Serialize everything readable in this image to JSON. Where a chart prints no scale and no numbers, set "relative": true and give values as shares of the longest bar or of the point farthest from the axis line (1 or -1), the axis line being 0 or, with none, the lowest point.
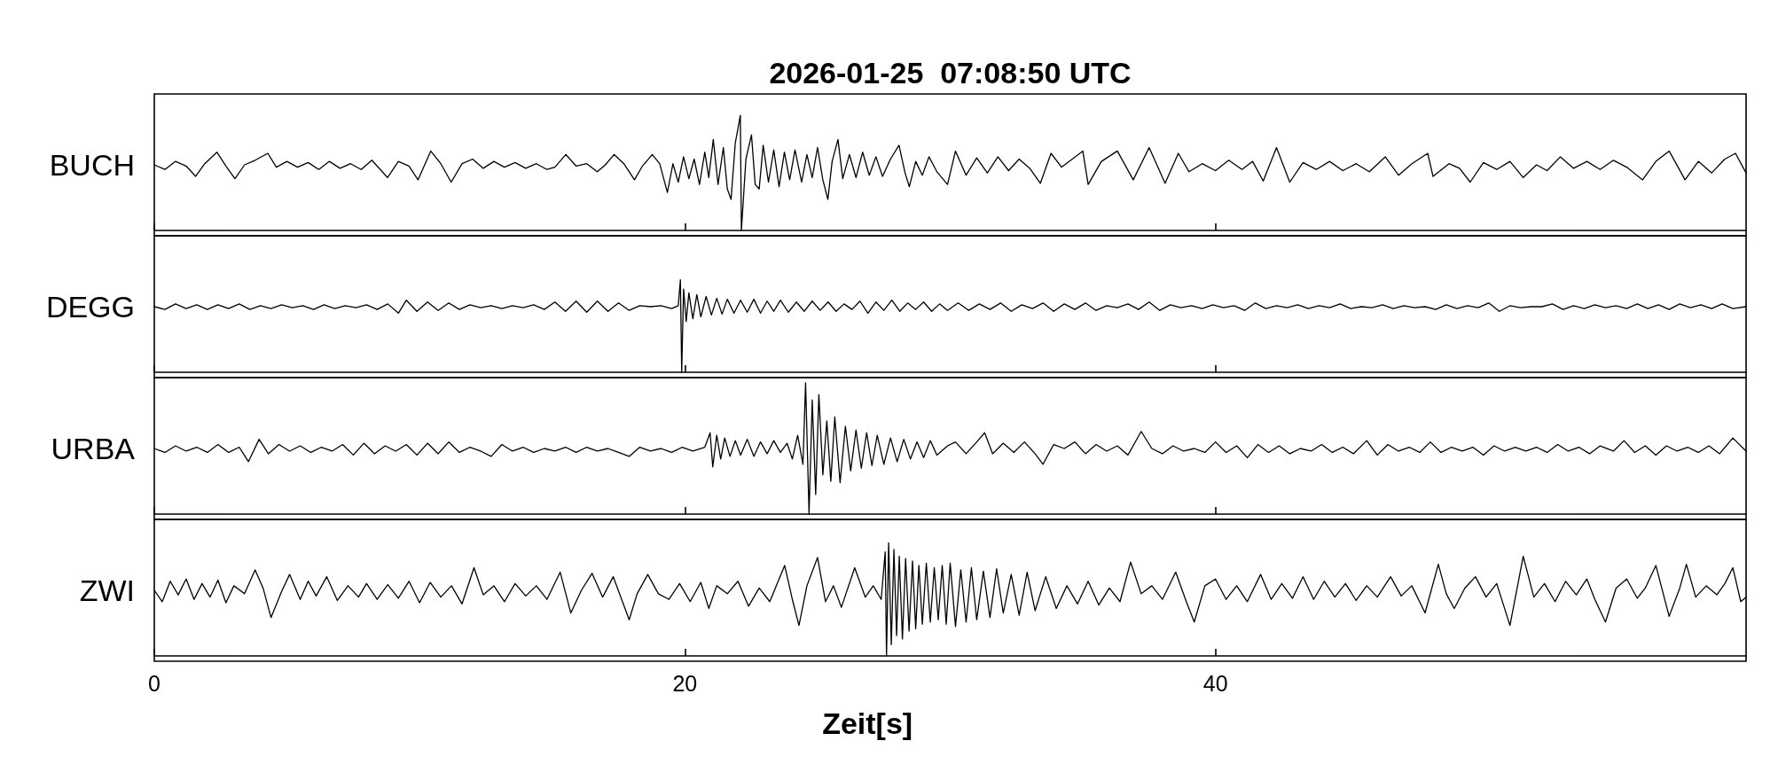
{
  "chart_data": [
    {
      "type": "line",
      "title": "2026-01-25  07:08:50 UTC",
      "ylabel": "BUCH",
      "relative": true,
      "color": "#000000",
      "xlim": [
        0,
        60
      ],
      "xticks": [
        0,
        20,
        40
      ],
      "tick_labels": false,
      "x": [
        0,
        0.4,
        0.8,
        1.2,
        1.56,
        1.9,
        2.36,
        2.7,
        3.04,
        3.4,
        3.8,
        4.28,
        4.6,
        5.0,
        5.4,
        5.8,
        6.2,
        6.6,
        7.0,
        7.4,
        7.8,
        8.2,
        8.79,
        9.2,
        9.6,
        9.94,
        10.42,
        10.8,
        11.19,
        11.6,
        12.0,
        12.4,
        12.8,
        13.2,
        13.6,
        14.0,
        14.4,
        14.8,
        15.1,
        15.51,
        15.9,
        16.3,
        16.7,
        17.0,
        17.33,
        17.7,
        18.1,
        18.4,
        18.77,
        19.05,
        19.34,
        19.55,
        19.75,
        19.95,
        20.15,
        20.35,
        20.55,
        20.75,
        20.9,
        21.07,
        21.25,
        21.45,
        21.6,
        21.74,
        21.9,
        22.09,
        22.13,
        22.3,
        22.51,
        22.65,
        22.8,
        22.95,
        23.15,
        23.35,
        23.55,
        23.75,
        23.95,
        24.15,
        24.4,
        24.6,
        24.8,
        25.0,
        25.2,
        25.39,
        25.55,
        25.77,
        25.95,
        26.2,
        26.45,
        26.7,
        26.95,
        27.2,
        27.45,
        27.75,
        28.07,
        28.3,
        28.46,
        28.7,
        28.95,
        29.2,
        29.5,
        29.9,
        30.2,
        30.6,
        31.0,
        31.4,
        31.8,
        32.2,
        32.6,
        33.0,
        33.4,
        33.8,
        34.2,
        34.6,
        35.0,
        35.2,
        35.7,
        36.3,
        36.9,
        37.5,
        38.1,
        38.6,
        39.0,
        39.5,
        40.0,
        40.5,
        41.0,
        41.4,
        41.8,
        42.3,
        42.8,
        43.3,
        43.8,
        44.3,
        44.8,
        45.3,
        45.8,
        46.4,
        46.9,
        47.4,
        48.0,
        48.2,
        48.8,
        49.2,
        49.6,
        50.1,
        50.6,
        51.1,
        51.6,
        52.1,
        52.5,
        53.0,
        53.5,
        54.0,
        54.5,
        55.0,
        55.5,
        56.1,
        56.6,
        57.1,
        57.7,
        58.2,
        58.7,
        59.2,
        59.6,
        60.0
      ],
      "values": [
        0.57,
        0.53,
        0.6,
        0.56,
        0.47,
        0.58,
        0.68,
        0.56,
        0.45,
        0.57,
        0.61,
        0.67,
        0.55,
        0.6,
        0.55,
        0.59,
        0.53,
        0.6,
        0.54,
        0.58,
        0.53,
        0.61,
        0.46,
        0.6,
        0.56,
        0.44,
        0.69,
        0.58,
        0.42,
        0.58,
        0.62,
        0.54,
        0.6,
        0.55,
        0.59,
        0.54,
        0.58,
        0.53,
        0.55,
        0.66,
        0.56,
        0.58,
        0.51,
        0.57,
        0.66,
        0.58,
        0.44,
        0.56,
        0.66,
        0.58,
        0.33,
        0.58,
        0.42,
        0.64,
        0.45,
        0.62,
        0.4,
        0.68,
        0.46,
        0.79,
        0.4,
        0.72,
        0.36,
        0.27,
        0.76,
        1.0,
        0.0,
        0.62,
        0.83,
        0.4,
        0.36,
        0.74,
        0.42,
        0.7,
        0.38,
        0.68,
        0.44,
        0.7,
        0.42,
        0.66,
        0.46,
        0.72,
        0.44,
        0.27,
        0.6,
        0.79,
        0.45,
        0.66,
        0.46,
        0.68,
        0.48,
        0.64,
        0.47,
        0.62,
        0.74,
        0.5,
        0.38,
        0.6,
        0.48,
        0.64,
        0.51,
        0.4,
        0.69,
        0.48,
        0.63,
        0.5,
        0.64,
        0.52,
        0.62,
        0.54,
        0.41,
        0.67,
        0.55,
        0.62,
        0.69,
        0.4,
        0.6,
        0.69,
        0.44,
        0.72,
        0.41,
        0.67,
        0.51,
        0.58,
        0.52,
        0.61,
        0.53,
        0.6,
        0.43,
        0.72,
        0.42,
        0.59,
        0.53,
        0.6,
        0.52,
        0.58,
        0.51,
        0.64,
        0.48,
        0.58,
        0.67,
        0.47,
        0.58,
        0.54,
        0.42,
        0.59,
        0.53,
        0.6,
        0.46,
        0.57,
        0.52,
        0.64,
        0.54,
        0.6,
        0.53,
        0.61,
        0.55,
        0.44,
        0.6,
        0.69,
        0.44,
        0.6,
        0.5,
        0.62,
        0.67,
        0.5
      ]
    },
    {
      "type": "line",
      "ylabel": "DEGG",
      "relative": true,
      "color": "#000000",
      "xlim": [
        0,
        60
      ],
      "xticks": [
        0,
        20,
        40
      ],
      "tick_labels": false,
      "x": [
        0,
        0.4,
        0.8,
        1.2,
        1.6,
        2.0,
        2.4,
        2.8,
        3.2,
        3.6,
        4.0,
        4.4,
        4.8,
        5.2,
        5.6,
        6.0,
        6.4,
        6.8,
        7.2,
        7.6,
        8.0,
        8.4,
        8.8,
        9.2,
        9.5,
        9.9,
        10.3,
        10.7,
        11.1,
        11.5,
        11.9,
        12.3,
        12.7,
        13.1,
        13.5,
        13.9,
        14.3,
        14.7,
        15.1,
        15.5,
        15.9,
        16.3,
        16.7,
        17.1,
        17.5,
        17.9,
        18.3,
        18.7,
        19.1,
        19.5,
        19.75,
        19.83,
        19.88,
        19.95,
        20.05,
        20.15,
        20.3,
        20.45,
        20.6,
        20.8,
        21.0,
        21.2,
        21.4,
        21.6,
        21.85,
        22.1,
        22.35,
        22.6,
        22.85,
        23.1,
        23.35,
        23.6,
        23.9,
        24.2,
        24.5,
        24.8,
        25.1,
        25.4,
        25.7,
        26.0,
        26.3,
        26.6,
        26.9,
        27.2,
        27.5,
        27.8,
        28.1,
        28.4,
        28.7,
        29.0,
        29.3,
        29.6,
        29.9,
        30.3,
        30.7,
        31.1,
        31.5,
        31.9,
        32.3,
        32.7,
        33.1,
        33.5,
        33.9,
        34.3,
        34.7,
        35.1,
        35.5,
        35.9,
        36.3,
        36.7,
        37.1,
        37.5,
        37.9,
        38.3,
        38.7,
        39.1,
        39.5,
        39.9,
        40.3,
        40.7,
        41.1,
        41.5,
        41.9,
        42.3,
        42.7,
        43.1,
        43.5,
        43.9,
        44.3,
        44.7,
        45.1,
        45.5,
        45.9,
        46.3,
        46.7,
        47.1,
        47.5,
        47.9,
        48.3,
        48.7,
        49.1,
        49.5,
        49.9,
        50.3,
        50.7,
        51.1,
        51.5,
        51.9,
        52.3,
        52.7,
        53.1,
        53.5,
        53.9,
        54.3,
        54.7,
        55.1,
        55.5,
        55.9,
        56.3,
        56.7,
        57.1,
        57.5,
        57.9,
        58.3,
        58.7,
        59.1,
        59.5,
        60.0
      ],
      "values": [
        0.71,
        0.68,
        0.74,
        0.69,
        0.73,
        0.68,
        0.73,
        0.69,
        0.74,
        0.68,
        0.72,
        0.69,
        0.73,
        0.7,
        0.72,
        0.68,
        0.73,
        0.69,
        0.72,
        0.7,
        0.73,
        0.68,
        0.74,
        0.64,
        0.78,
        0.66,
        0.76,
        0.67,
        0.75,
        0.68,
        0.73,
        0.7,
        0.72,
        0.69,
        0.72,
        0.7,
        0.73,
        0.68,
        0.76,
        0.66,
        0.77,
        0.65,
        0.77,
        0.66,
        0.75,
        0.67,
        0.72,
        0.71,
        0.72,
        0.69,
        0.72,
        1.0,
        0.0,
        0.9,
        0.55,
        0.86,
        0.58,
        0.84,
        0.6,
        0.82,
        0.62,
        0.8,
        0.63,
        0.79,
        0.64,
        0.78,
        0.65,
        0.79,
        0.64,
        0.77,
        0.66,
        0.78,
        0.65,
        0.76,
        0.66,
        0.77,
        0.67,
        0.76,
        0.66,
        0.74,
        0.68,
        0.77,
        0.64,
        0.76,
        0.67,
        0.78,
        0.66,
        0.75,
        0.68,
        0.76,
        0.66,
        0.74,
        0.67,
        0.75,
        0.67,
        0.74,
        0.68,
        0.75,
        0.66,
        0.73,
        0.69,
        0.75,
        0.66,
        0.74,
        0.68,
        0.75,
        0.67,
        0.72,
        0.7,
        0.74,
        0.68,
        0.76,
        0.67,
        0.73,
        0.7,
        0.72,
        0.69,
        0.73,
        0.7,
        0.72,
        0.67,
        0.75,
        0.69,
        0.72,
        0.7,
        0.73,
        0.69,
        0.72,
        0.7,
        0.74,
        0.69,
        0.71,
        0.7,
        0.73,
        0.69,
        0.72,
        0.7,
        0.71,
        0.68,
        0.73,
        0.69,
        0.72,
        0.7,
        0.75,
        0.66,
        0.72,
        0.7,
        0.71,
        0.71,
        0.74,
        0.68,
        0.72,
        0.69,
        0.73,
        0.7,
        0.72,
        0.69,
        0.74,
        0.69,
        0.73,
        0.68,
        0.74,
        0.7,
        0.73,
        0.69,
        0.74,
        0.69,
        0.71
      ]
    },
    {
      "type": "line",
      "ylabel": "URBA",
      "relative": true,
      "color": "#000000",
      "xlim": [
        0,
        60
      ],
      "xticks": [
        0,
        20,
        40
      ],
      "tick_labels": false,
      "x": [
        0,
        0.4,
        0.8,
        1.2,
        1.6,
        2.0,
        2.4,
        2.8,
        3.2,
        3.55,
        3.95,
        4.3,
        4.7,
        5.1,
        5.5,
        5.9,
        6.3,
        6.7,
        7.1,
        7.5,
        7.9,
        8.3,
        8.7,
        9.1,
        9.5,
        9.9,
        10.3,
        10.7,
        11.1,
        11.5,
        11.9,
        12.3,
        12.7,
        13.1,
        13.5,
        13.9,
        14.3,
        14.7,
        15.1,
        15.5,
        15.9,
        16.3,
        16.7,
        17.1,
        17.5,
        17.9,
        18.3,
        18.7,
        19.1,
        19.5,
        19.9,
        20.3,
        20.75,
        20.95,
        21.05,
        21.2,
        21.35,
        21.5,
        21.7,
        21.9,
        22.1,
        22.35,
        22.6,
        22.85,
        23.1,
        23.35,
        23.6,
        23.85,
        24.05,
        24.25,
        24.45,
        24.55,
        24.68,
        24.8,
        24.93,
        25.05,
        25.2,
        25.35,
        25.5,
        25.65,
        25.85,
        26.05,
        26.25,
        26.45,
        26.65,
        26.85,
        27.05,
        27.25,
        27.5,
        27.75,
        28.0,
        28.25,
        28.5,
        28.75,
        29.0,
        29.25,
        29.5,
        29.9,
        30.2,
        30.6,
        31.0,
        31.3,
        31.6,
        32.0,
        32.4,
        32.8,
        33.2,
        33.5,
        33.9,
        34.3,
        34.7,
        35.1,
        35.5,
        35.9,
        36.3,
        36.7,
        37.2,
        37.6,
        38.0,
        38.4,
        38.8,
        39.2,
        39.6,
        40.0,
        40.4,
        40.8,
        41.2,
        41.6,
        42.0,
        42.4,
        42.8,
        43.2,
        43.6,
        44.0,
        44.4,
        44.8,
        45.2,
        45.7,
        46.1,
        46.5,
        46.9,
        47.3,
        47.7,
        48.1,
        48.5,
        48.9,
        49.3,
        49.7,
        50.1,
        50.5,
        50.9,
        51.3,
        51.7,
        52.1,
        52.5,
        52.9,
        53.3,
        53.7,
        54.1,
        54.5,
        55.0,
        55.4,
        55.8,
        56.2,
        56.6,
        57.0,
        57.4,
        57.8,
        58.2,
        58.6,
        59.0,
        59.5,
        60.0
      ],
      "values": [
        0.5,
        0.47,
        0.52,
        0.48,
        0.51,
        0.47,
        0.53,
        0.47,
        0.51,
        0.4,
        0.57,
        0.46,
        0.53,
        0.48,
        0.52,
        0.47,
        0.51,
        0.48,
        0.53,
        0.45,
        0.54,
        0.46,
        0.52,
        0.48,
        0.53,
        0.45,
        0.54,
        0.46,
        0.55,
        0.47,
        0.51,
        0.48,
        0.44,
        0.53,
        0.48,
        0.51,
        0.47,
        0.5,
        0.48,
        0.51,
        0.47,
        0.51,
        0.48,
        0.5,
        0.47,
        0.44,
        0.51,
        0.48,
        0.5,
        0.47,
        0.51,
        0.48,
        0.51,
        0.62,
        0.36,
        0.6,
        0.42,
        0.58,
        0.44,
        0.56,
        0.45,
        0.57,
        0.44,
        0.55,
        0.46,
        0.56,
        0.47,
        0.54,
        0.42,
        0.6,
        0.38,
        1.0,
        0.0,
        0.87,
        0.15,
        0.91,
        0.3,
        0.71,
        0.25,
        0.74,
        0.24,
        0.67,
        0.33,
        0.64,
        0.35,
        0.62,
        0.37,
        0.6,
        0.38,
        0.58,
        0.4,
        0.57,
        0.42,
        0.55,
        0.43,
        0.56,
        0.45,
        0.52,
        0.55,
        0.46,
        0.55,
        0.62,
        0.46,
        0.54,
        0.47,
        0.55,
        0.46,
        0.38,
        0.53,
        0.5,
        0.55,
        0.46,
        0.53,
        0.48,
        0.52,
        0.45,
        0.63,
        0.5,
        0.46,
        0.52,
        0.48,
        0.5,
        0.47,
        0.55,
        0.47,
        0.52,
        0.43,
        0.53,
        0.47,
        0.52,
        0.46,
        0.5,
        0.48,
        0.53,
        0.47,
        0.51,
        0.46,
        0.56,
        0.45,
        0.53,
        0.48,
        0.51,
        0.47,
        0.55,
        0.47,
        0.51,
        0.48,
        0.51,
        0.45,
        0.52,
        0.48,
        0.51,
        0.48,
        0.51,
        0.47,
        0.53,
        0.48,
        0.51,
        0.46,
        0.52,
        0.48,
        0.56,
        0.47,
        0.52,
        0.45,
        0.52,
        0.48,
        0.51,
        0.47,
        0.52,
        0.46,
        0.58,
        0.48
      ]
    },
    {
      "type": "line",
      "ylabel": "ZWI",
      "xlabel": "Zeit[s]",
      "relative": true,
      "color": "#000000",
      "xlim": [
        0,
        60
      ],
      "xticks": [
        0,
        20,
        40
      ],
      "tick_labels": "x",
      "x": [
        0,
        0.3,
        0.6,
        0.9,
        1.2,
        1.5,
        1.8,
        2.1,
        2.4,
        2.7,
        3.0,
        3.4,
        3.8,
        4.1,
        4.4,
        4.8,
        5.1,
        5.5,
        5.8,
        6.1,
        6.5,
        6.9,
        7.3,
        7.7,
        8.0,
        8.4,
        8.8,
        9.2,
        9.6,
        10.0,
        10.4,
        10.8,
        11.2,
        11.6,
        12.05,
        12.4,
        12.8,
        13.2,
        13.6,
        14.0,
        14.4,
        14.8,
        15.3,
        15.7,
        16.1,
        16.5,
        16.9,
        17.3,
        17.9,
        18.2,
        18.6,
        19.0,
        19.4,
        19.8,
        20.2,
        20.6,
        20.9,
        21.2,
        21.6,
        22.0,
        22.4,
        22.8,
        23.2,
        23.76,
        24.05,
        24.3,
        24.6,
        25.0,
        25.3,
        25.6,
        25.9,
        26.4,
        26.8,
        27.1,
        27.4,
        27.55,
        27.6,
        27.68,
        27.78,
        27.88,
        27.98,
        28.08,
        28.2,
        28.32,
        28.45,
        28.58,
        28.7,
        28.82,
        28.95,
        29.1,
        29.25,
        29.4,
        29.55,
        29.7,
        29.85,
        30.0,
        30.2,
        30.4,
        30.6,
        30.8,
        31.0,
        31.25,
        31.5,
        31.75,
        32.0,
        32.3,
        32.6,
        32.9,
        33.2,
        33.6,
        34.0,
        34.4,
        34.8,
        35.2,
        35.6,
        36.0,
        36.4,
        36.8,
        37.2,
        37.6,
        38.0,
        38.5,
        38.9,
        39.2,
        39.6,
        40.0,
        40.4,
        40.8,
        41.2,
        41.7,
        42.1,
        42.5,
        42.9,
        43.3,
        43.7,
        44.1,
        44.5,
        44.9,
        45.3,
        45.7,
        46.1,
        46.6,
        47.0,
        47.4,
        47.9,
        48.4,
        48.7,
        49.0,
        49.4,
        49.8,
        50.2,
        50.6,
        51.1,
        51.6,
        52.0,
        52.4,
        52.8,
        53.2,
        53.6,
        54.0,
        54.3,
        54.7,
        55.1,
        55.5,
        55.9,
        56.2,
        56.6,
        57.1,
        57.5,
        57.75,
        58.1,
        58.5,
        58.9,
        59.2,
        59.5,
        59.8,
        60.0
      ],
      "values": [
        0.58,
        0.48,
        0.66,
        0.54,
        0.68,
        0.5,
        0.64,
        0.52,
        0.67,
        0.47,
        0.62,
        0.55,
        0.76,
        0.6,
        0.34,
        0.57,
        0.72,
        0.5,
        0.66,
        0.53,
        0.7,
        0.49,
        0.62,
        0.52,
        0.64,
        0.5,
        0.63,
        0.51,
        0.66,
        0.47,
        0.65,
        0.52,
        0.62,
        0.46,
        0.78,
        0.54,
        0.62,
        0.48,
        0.64,
        0.53,
        0.62,
        0.5,
        0.74,
        0.38,
        0.58,
        0.73,
        0.52,
        0.7,
        0.32,
        0.55,
        0.72,
        0.55,
        0.5,
        0.64,
        0.48,
        0.65,
        0.42,
        0.62,
        0.55,
        0.66,
        0.44,
        0.6,
        0.48,
        0.8,
        0.5,
        0.27,
        0.62,
        0.87,
        0.48,
        0.62,
        0.43,
        0.78,
        0.52,
        0.62,
        0.5,
        0.92,
        0.0,
        1.0,
        0.1,
        0.94,
        0.18,
        0.88,
        0.15,
        0.86,
        0.22,
        0.84,
        0.24,
        0.8,
        0.28,
        0.82,
        0.3,
        0.78,
        0.32,
        0.8,
        0.28,
        0.82,
        0.26,
        0.76,
        0.3,
        0.78,
        0.32,
        0.75,
        0.34,
        0.77,
        0.38,
        0.72,
        0.36,
        0.74,
        0.4,
        0.7,
        0.42,
        0.62,
        0.46,
        0.66,
        0.45,
        0.6,
        0.48,
        0.83,
        0.55,
        0.62,
        0.5,
        0.74,
        0.48,
        0.3,
        0.62,
        0.68,
        0.5,
        0.62,
        0.48,
        0.72,
        0.5,
        0.64,
        0.51,
        0.7,
        0.5,
        0.66,
        0.52,
        0.64,
        0.49,
        0.62,
        0.52,
        0.7,
        0.53,
        0.62,
        0.38,
        0.81,
        0.55,
        0.42,
        0.6,
        0.7,
        0.52,
        0.64,
        0.27,
        0.88,
        0.52,
        0.64,
        0.48,
        0.66,
        0.54,
        0.68,
        0.5,
        0.3,
        0.6,
        0.68,
        0.51,
        0.6,
        0.8,
        0.35,
        0.6,
        0.81,
        0.52,
        0.62,
        0.54,
        0.64,
        0.78,
        0.48,
        0.52
      ]
    }
  ]
}
